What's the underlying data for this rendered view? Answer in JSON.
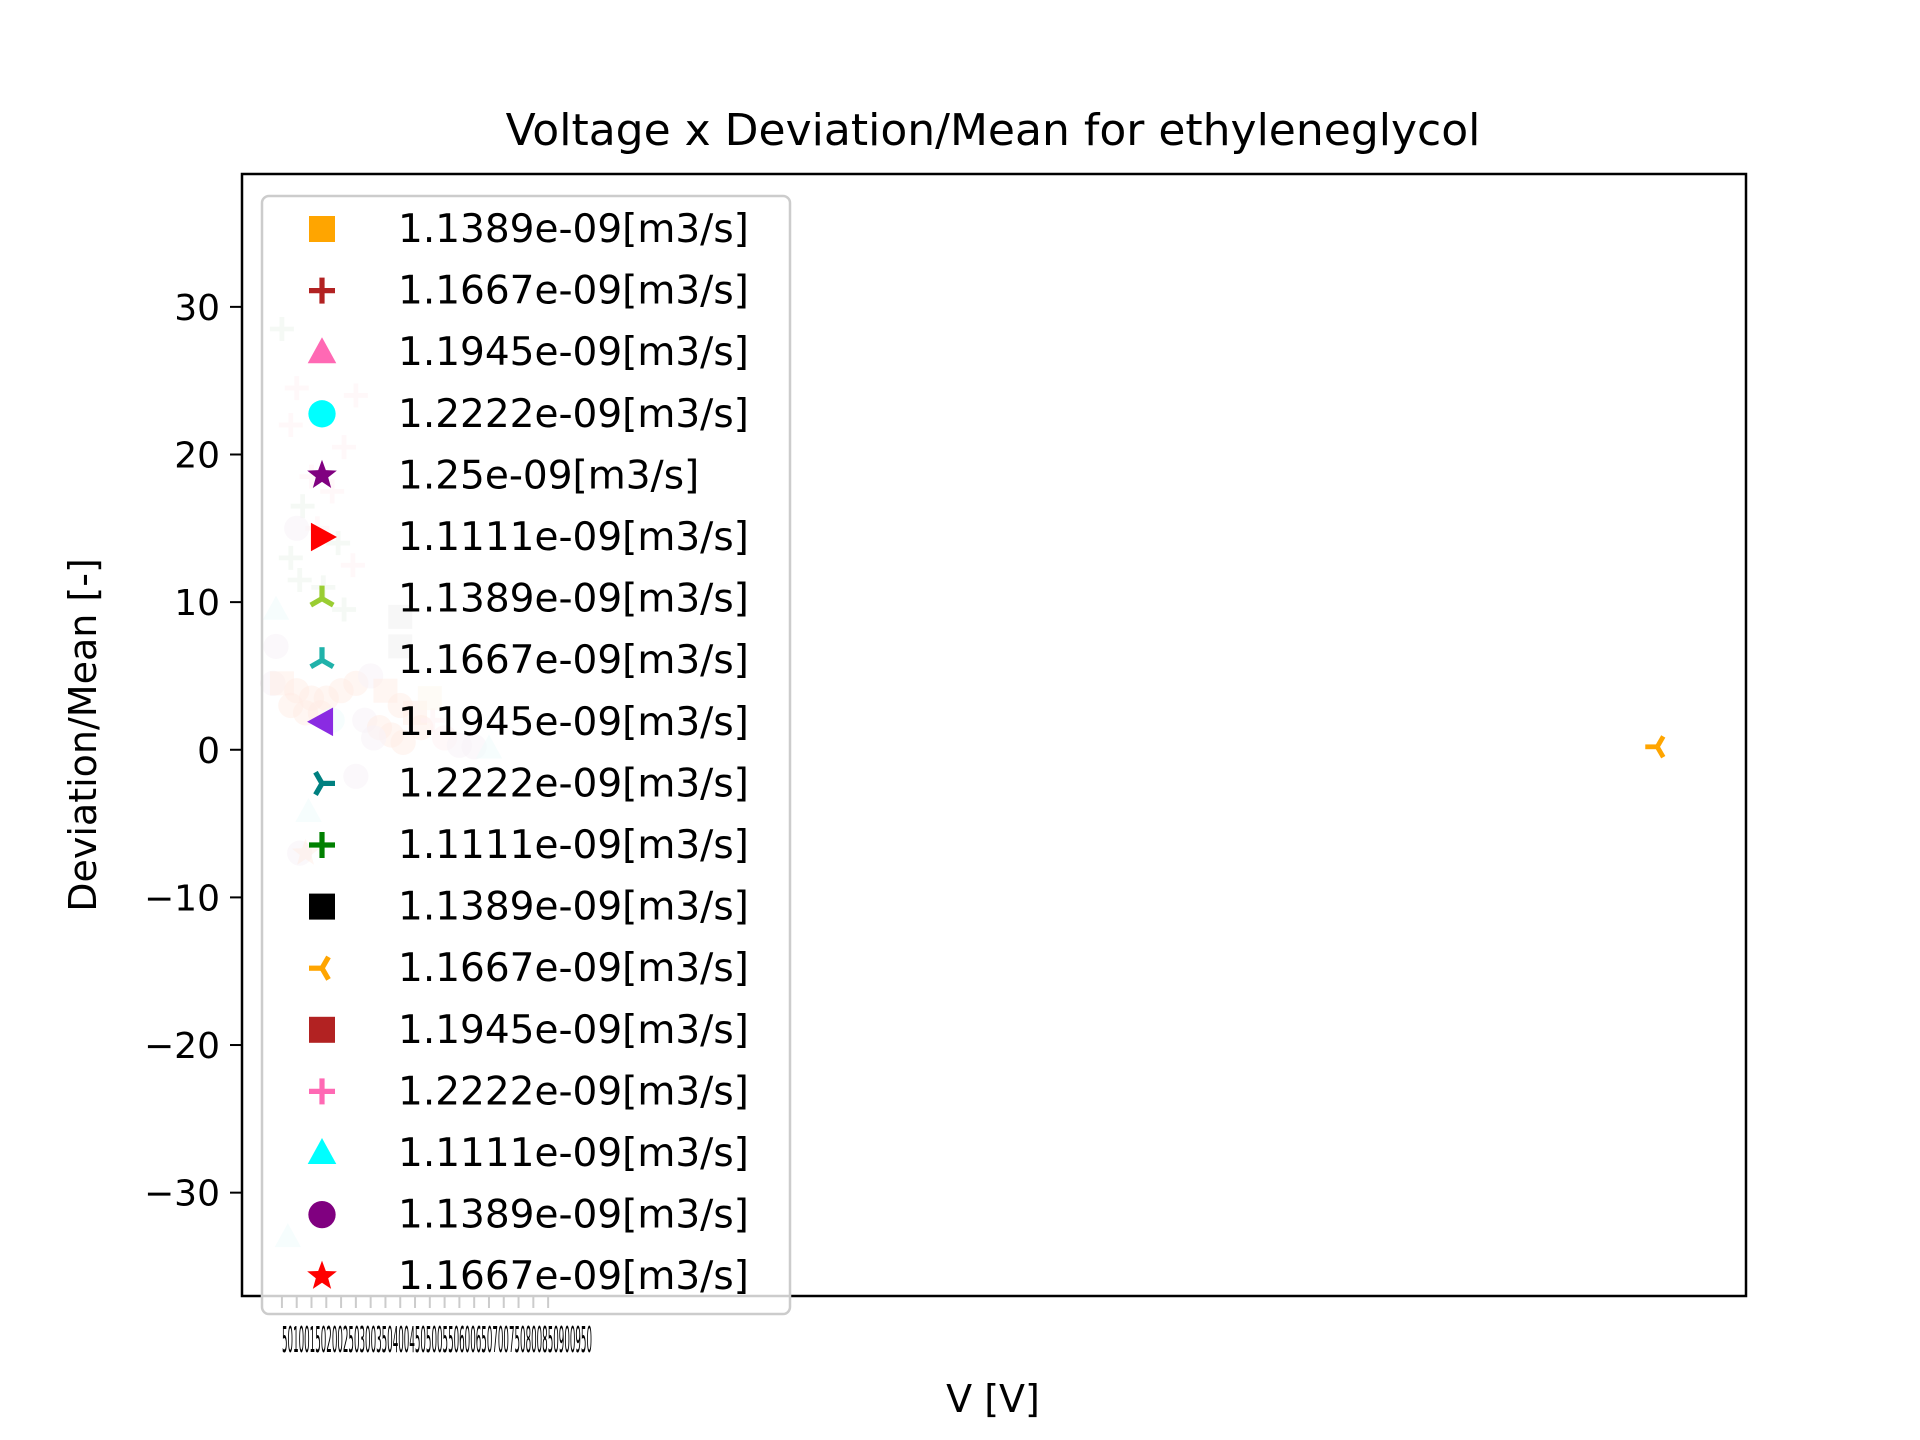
{
  "chart_data": {
    "type": "scatter",
    "title": "Voltage x Deviation/Mean for ethyleneglycol",
    "xlabel": "V [V]",
    "ylabel": "Deviation/Mean [-]",
    "ylim": [
      -37,
      39
    ],
    "xlim": [
      -85,
      5000
    ],
    "y_ticks": [
      30,
      20,
      10,
      0,
      -10,
      -20,
      -30
    ],
    "y_tick_labels": [
      "30",
      "20",
      "10",
      "0",
      "−10",
      "−20",
      "−30"
    ],
    "x_tick_labels_overlapping": "50100150200250300350400450500550600650700750800850900950",
    "grid": false,
    "legend": {
      "placement": "upper-left",
      "entries": [
        {
          "label": "1.1389e-09[m3/s]",
          "marker": "square",
          "color": "#FFA500"
        },
        {
          "label": "1.1667e-09[m3/s]",
          "marker": "plus",
          "color": "#B22222"
        },
        {
          "label": "1.1945e-09[m3/s]",
          "marker": "triangle-up",
          "color": "#FF69B4"
        },
        {
          "label": "1.2222e-09[m3/s]",
          "marker": "circle",
          "color": "#00FFFF"
        },
        {
          "label": "1.25e-09[m3/s]",
          "marker": "star",
          "color": "#800080"
        },
        {
          "label": "1.1111e-09[m3/s]",
          "marker": "triangle-right",
          "color": "#FF0000"
        },
        {
          "label": "1.1389e-09[m3/s]",
          "marker": "tri-down",
          "color": "#9ACD32"
        },
        {
          "label": "1.1667e-09[m3/s]",
          "marker": "tri-down",
          "color": "#20B2AA"
        },
        {
          "label": "1.1945e-09[m3/s]",
          "marker": "triangle-left",
          "color": "#8A2BE2"
        },
        {
          "label": "1.2222e-09[m3/s]",
          "marker": "tri-left",
          "color": "#008080"
        },
        {
          "label": "1.1111e-09[m3/s]",
          "marker": "plus",
          "color": "#008000"
        },
        {
          "label": "1.1389e-09[m3/s]",
          "marker": "square",
          "color": "#000000"
        },
        {
          "label": "1.1667e-09[m3/s]",
          "marker": "tri-right",
          "color": "#FFA500"
        },
        {
          "label": "1.1945e-09[m3/s]",
          "marker": "square",
          "color": "#B22222"
        },
        {
          "label": "1.2222e-09[m3/s]",
          "marker": "plus",
          "color": "#FF69B4"
        },
        {
          "label": "1.1111e-09[m3/s]",
          "marker": "triangle-up",
          "color": "#00FFFF"
        },
        {
          "label": "1.1389e-09[m3/s]",
          "marker": "circle",
          "color": "#800080"
        },
        {
          "label": "1.1667e-09[m3/s]",
          "marker": "star",
          "color": "#FF0000"
        }
      ]
    },
    "points": [
      {
        "x": 4700,
        "y": 0.2,
        "marker": "tri-right",
        "color": "#FFA500",
        "alpha": 1.0
      },
      {
        "x": 50,
        "y": 28.5,
        "marker": "plus",
        "color": "#8FBC8F",
        "alpha": 0.45
      },
      {
        "x": 100,
        "y": 24.5,
        "marker": "plus",
        "color": "#FFB6C1",
        "alpha": 0.5
      },
      {
        "x": 80,
        "y": 22,
        "marker": "plus",
        "color": "#FFB6C1",
        "alpha": 0.5
      },
      {
        "x": 300,
        "y": 24,
        "marker": "plus",
        "color": "#FFB6C1",
        "alpha": 0.5
      },
      {
        "x": 260,
        "y": 20.5,
        "marker": "plus",
        "color": "#FFB6C1",
        "alpha": 0.5
      },
      {
        "x": 150,
        "y": 18.5,
        "marker": "plus",
        "color": "#FFB6C1",
        "alpha": 0.5
      },
      {
        "x": 220,
        "y": 17.5,
        "marker": "plus",
        "color": "#FFB6C1",
        "alpha": 0.5
      },
      {
        "x": 120,
        "y": 16.5,
        "marker": "plus",
        "color": "#8FBC8F",
        "alpha": 0.45
      },
      {
        "x": 170,
        "y": 15,
        "marker": "plus",
        "color": "#FFB6C1",
        "alpha": 0.5
      },
      {
        "x": 240,
        "y": 14,
        "marker": "plus",
        "color": "#8FBC8F",
        "alpha": 0.45
      },
      {
        "x": 80,
        "y": 13,
        "marker": "plus",
        "color": "#8FBC8F",
        "alpha": 0.45
      },
      {
        "x": 290,
        "y": 12.5,
        "marker": "plus",
        "color": "#FFB6C1",
        "alpha": 0.5
      },
      {
        "x": 110,
        "y": 11.5,
        "marker": "plus",
        "color": "#8FBC8F",
        "alpha": 0.45
      },
      {
        "x": 190,
        "y": 11,
        "marker": "plus",
        "color": "#8FBC8F",
        "alpha": 0.45
      },
      {
        "x": 260,
        "y": 9.5,
        "marker": "plus",
        "color": "#8FBC8F",
        "alpha": 0.45
      },
      {
        "x": 100,
        "y": 15,
        "marker": "circle",
        "color": "#D8BFD8",
        "alpha": 0.6
      },
      {
        "x": 30,
        "y": 9.5,
        "marker": "triangle-up",
        "color": "#AFEEEE",
        "alpha": 0.6
      },
      {
        "x": 450,
        "y": 9,
        "marker": "square",
        "color": "#A9A9A9",
        "alpha": 0.5
      },
      {
        "x": 450,
        "y": 7,
        "marker": "square",
        "color": "#A9A9A9",
        "alpha": 0.5
      },
      {
        "x": 30,
        "y": 7,
        "marker": "circle",
        "color": "#D8BFD8",
        "alpha": 0.6
      },
      {
        "x": 20,
        "y": 4.5,
        "marker": "circle",
        "color": "#D8BFD8",
        "alpha": 0.6
      },
      {
        "x": 50,
        "y": 4.5,
        "marker": "square",
        "color": "#FFA07A",
        "alpha": 0.5
      },
      {
        "x": 100,
        "y": 4,
        "marker": "circle",
        "color": "#FFA07A",
        "alpha": 0.5
      },
      {
        "x": 150,
        "y": 3.5,
        "marker": "circle",
        "color": "#FFA07A",
        "alpha": 0.5
      },
      {
        "x": 200,
        "y": 3.5,
        "marker": "circle",
        "color": "#FFA07A",
        "alpha": 0.5
      },
      {
        "x": 250,
        "y": 4,
        "marker": "circle",
        "color": "#FFA07A",
        "alpha": 0.5
      },
      {
        "x": 300,
        "y": 4.5,
        "marker": "circle",
        "color": "#FFA07A",
        "alpha": 0.5
      },
      {
        "x": 350,
        "y": 5,
        "marker": "circle",
        "color": "#D8BFD8",
        "alpha": 0.6
      },
      {
        "x": 400,
        "y": 4,
        "marker": "square",
        "color": "#FFA07A",
        "alpha": 0.5
      },
      {
        "x": 450,
        "y": 3,
        "marker": "circle",
        "color": "#FFA07A",
        "alpha": 0.5
      },
      {
        "x": 500,
        "y": 2.5,
        "marker": "square",
        "color": "#FFA07A",
        "alpha": 0.5
      },
      {
        "x": 80,
        "y": 3,
        "marker": "circle",
        "color": "#FFA07A",
        "alpha": 0.5
      },
      {
        "x": 130,
        "y": 2.5,
        "marker": "circle",
        "color": "#FFA07A",
        "alpha": 0.5
      },
      {
        "x": 180,
        "y": 2.5,
        "marker": "circle",
        "color": "#FFA07A",
        "alpha": 0.5
      },
      {
        "x": 220,
        "y": 2,
        "marker": "circle",
        "color": "#AFEEEE",
        "alpha": 0.6
      },
      {
        "x": 330,
        "y": 2,
        "marker": "circle",
        "color": "#D8BFD8",
        "alpha": 0.6
      },
      {
        "x": 380,
        "y": 1.5,
        "marker": "circle",
        "color": "#FFA07A",
        "alpha": 0.5
      },
      {
        "x": 420,
        "y": 1,
        "marker": "circle",
        "color": "#FFA07A",
        "alpha": 0.5
      },
      {
        "x": 360,
        "y": 0.8,
        "marker": "circle",
        "color": "#D8BFD8",
        "alpha": 0.6
      },
      {
        "x": 460,
        "y": 0.5,
        "marker": "circle",
        "color": "#FFA07A",
        "alpha": 0.5
      },
      {
        "x": 520,
        "y": 1.5,
        "marker": "circle",
        "color": "#FFA07A",
        "alpha": 0.5
      },
      {
        "x": 560,
        "y": 2,
        "marker": "plus",
        "color": "#FFB6C1",
        "alpha": 0.5
      },
      {
        "x": 600,
        "y": 0.8,
        "marker": "circle",
        "color": "#FFB6C1",
        "alpha": 0.5
      },
      {
        "x": 650,
        "y": 0.3,
        "marker": "circle",
        "color": "#D8BFD8",
        "alpha": 0.6
      },
      {
        "x": 700,
        "y": 0.2,
        "marker": "circle",
        "color": "#D8BFD8",
        "alpha": 0.6
      },
      {
        "x": 750,
        "y": 0.1,
        "marker": "triangle-up",
        "color": "#AFEEEE",
        "alpha": 0.6
      },
      {
        "x": 550,
        "y": 3.5,
        "marker": "square",
        "color": "#F5DEB3",
        "alpha": 0.6
      },
      {
        "x": 300,
        "y": -1.8,
        "marker": "circle",
        "color": "#D8BFD8",
        "alpha": 0.6
      },
      {
        "x": 140,
        "y": -4.2,
        "marker": "triangle-up",
        "color": "#AFEEEE",
        "alpha": 0.6
      },
      {
        "x": 110,
        "y": -7,
        "marker": "circle",
        "color": "#D8BFD8",
        "alpha": 0.6
      },
      {
        "x": 130,
        "y": -7,
        "marker": "star",
        "color": "#FFA07A",
        "alpha": 0.5
      },
      {
        "x": 70,
        "y": -33,
        "marker": "triangle-up",
        "color": "#AFEEEE",
        "alpha": 0.6
      }
    ]
  }
}
